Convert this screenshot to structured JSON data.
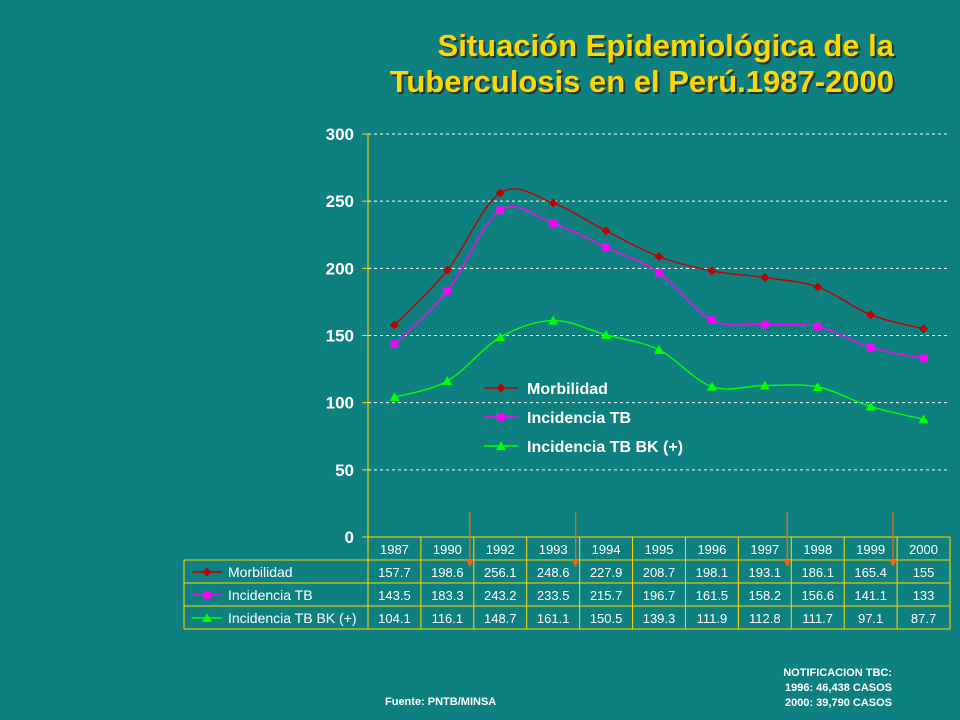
{
  "page": {
    "title_line1": "Situación Epidemiológica de la",
    "title_line2": "Tuberculosis en el Perú.1987-2000",
    "notification_title": "NOTIFICACION TBC:",
    "notification_1996": "1996: 46,438 CASOS",
    "notification_2000": "2000: 39,790 CASOS",
    "source": "Fuente: PNTB/MINSA"
  },
  "colors": {
    "background": "#0f8080",
    "title": "#ffd700",
    "axis": "#ffd700",
    "morbilidad": "#c00000",
    "incidencia_tb": "#ff00ff",
    "incidencia_bk": "#00ff00",
    "arrow": "#ff6600"
  },
  "chart_data": {
    "type": "line",
    "categories": [
      "1987",
      "1990",
      "1992",
      "1993",
      "1994",
      "1995",
      "1996",
      "1997",
      "1998",
      "1999",
      "2000"
    ],
    "y_ticks": [
      "0",
      "50",
      "100",
      "150",
      "200",
      "250",
      "300"
    ],
    "ylim": [
      0,
      300
    ],
    "grid": true,
    "legend_position": "center",
    "series": [
      {
        "name": "Morbilidad",
        "marker": "diamond",
        "color": "#c00000",
        "values": [
          157.7,
          198.6,
          256.1,
          248.6,
          227.9,
          208.7,
          198.1,
          193.1,
          186.1,
          165.4,
          155
        ],
        "labels": [
          "157.7",
          "198.6",
          "256.1",
          "248.6",
          "227.9",
          "208.7",
          "198.1",
          "193.1",
          "186.1",
          "165.4",
          "155"
        ]
      },
      {
        "name": "Incidencia TB",
        "marker": "square",
        "color": "#ff00ff",
        "values": [
          143.5,
          183.3,
          243.2,
          233.5,
          215.7,
          196.7,
          161.5,
          158.2,
          156.6,
          141.1,
          133
        ],
        "labels": [
          "143.5",
          "183.3",
          "243.2",
          "233.5",
          "215.7",
          "196.7",
          "161.5",
          "158.2",
          "156.6",
          "141.1",
          "133"
        ]
      },
      {
        "name": "Incidencia TB BK (+)",
        "marker": "triangle",
        "color": "#00ff00",
        "values": [
          104.1,
          116.1,
          148.7,
          161.1,
          150.5,
          139.3,
          111.9,
          112.8,
          111.7,
          97.1,
          87.7
        ],
        "labels": [
          "104.1",
          "116.1",
          "148.7",
          "161.1",
          "150.5",
          "139.3",
          "111.9",
          "112.8",
          "111.7",
          "97.1",
          "87.7"
        ]
      }
    ],
    "arrows_between": [
      [
        1,
        2
      ],
      [
        3,
        4
      ],
      [
        7,
        8
      ],
      [
        9,
        10
      ]
    ]
  }
}
